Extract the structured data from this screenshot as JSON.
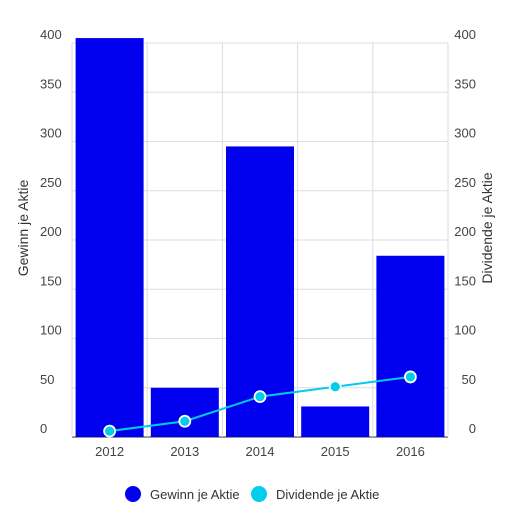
{
  "chart_data": {
    "type": "bar",
    "categories": [
      "2012",
      "2013",
      "2014",
      "2015",
      "2016"
    ],
    "series": [
      {
        "name": "Gewinn je Aktie",
        "kind": "bar",
        "axis": "left",
        "color": "#0000ee",
        "values": [
          405,
          50,
          295,
          31,
          184
        ]
      },
      {
        "name": "Dividende je Aktie",
        "kind": "line",
        "axis": "right",
        "color": "#00ccee",
        "values": [
          6,
          16,
          41,
          51,
          61
        ]
      }
    ],
    "ylabel": "Gewinn je Aktie",
    "y2label": "Dividende je Aktie",
    "ylim": [
      0,
      400
    ],
    "y2lim": [
      0,
      400
    ],
    "yticks": [
      "0",
      "50",
      "100",
      "150",
      "200",
      "250",
      "300",
      "350",
      "400"
    ],
    "y2ticks": [
      "0",
      "50",
      "100",
      "150",
      "200",
      "250",
      "300",
      "350",
      "400"
    ],
    "grid": true,
    "legend": "bottom"
  }
}
